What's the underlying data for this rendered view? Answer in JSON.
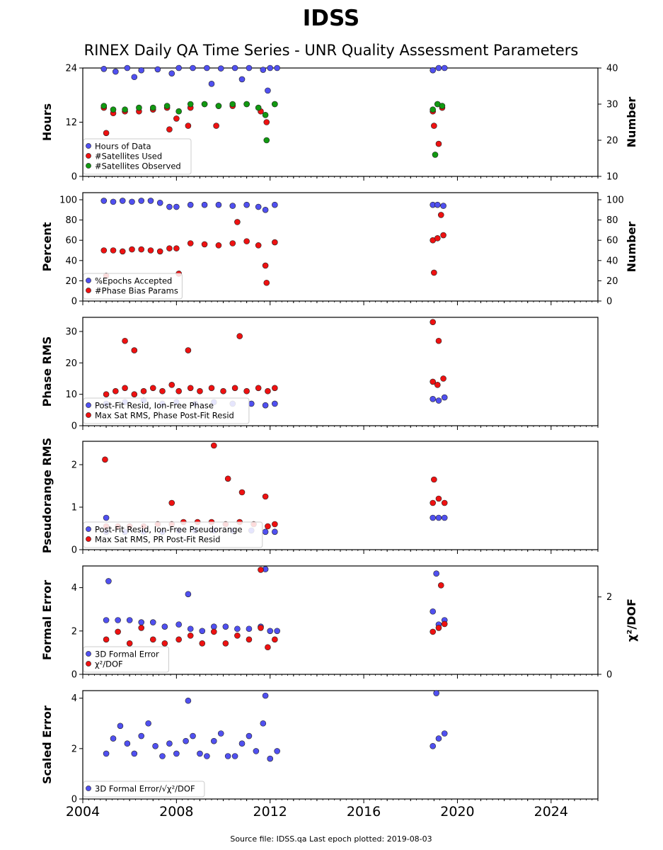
{
  "title": "IDSS",
  "subtitle": "RINEX Daily QA Time Series - UNR Quality Assessment Parameters",
  "footer": "Source file: IDSS.qa Last epoch plotted: 2019-08-03",
  "colors": {
    "blue": "#5050f0",
    "red": "#ee1111",
    "green": "#119911",
    "edge": "#222222"
  },
  "x_axis": {
    "ticks": [
      "2004",
      "2008",
      "2012",
      "2016",
      "2020",
      "2024"
    ]
  },
  "chart_data": [
    {
      "type": "scatter",
      "ylabel": "Hours",
      "y2label": "Number",
      "ylim": [
        0,
        24
      ],
      "yticks": [
        "0",
        "12",
        "24"
      ],
      "y2lim": [
        10,
        40
      ],
      "y2ticks": [
        "10",
        "20",
        "30",
        "40"
      ],
      "legend": "bottom-left",
      "series": [
        {
          "name": "Hours of Data",
          "color": "blue",
          "axis": "left",
          "x": [
            2004.9,
            2005.4,
            2005.9,
            2006.5,
            2007.2,
            2007.8,
            2008.1,
            2008.7,
            2009.3,
            2009.9,
            2010.5,
            2011.1,
            2011.7,
            2012.0,
            2012.3,
            2018.95,
            2019.2,
            2019.45,
            2009.5,
            2010.8,
            2006.2,
            2011.9
          ],
          "y": [
            23.8,
            23.2,
            24,
            23.5,
            23.7,
            22.8,
            24,
            24,
            24,
            23.9,
            24,
            24,
            23.6,
            24,
            24,
            23.5,
            24,
            24,
            20.5,
            21.5,
            22,
            19
          ]
        },
        {
          "name": "#Satellites Used",
          "color": "red",
          "axis": "right",
          "x": [
            2004.9,
            2005.3,
            2005.8,
            2006.4,
            2007.0,
            2007.6,
            2008.0,
            2008.6,
            2009.2,
            2009.8,
            2010.4,
            2011.0,
            2011.6,
            2011.85,
            2012.2,
            2018.95,
            2019.15,
            2019.35,
            2005.0,
            2007.7,
            2008.5,
            2009.7,
            2019.0,
            2019.2
          ],
          "y": [
            29,
            27.5,
            28,
            28,
            28.5,
            29,
            26,
            29,
            30,
            29.5,
            29.5,
            30,
            28,
            25,
            30,
            28,
            30,
            29,
            22,
            23,
            24,
            24,
            24,
            19
          ]
        },
        {
          "name": "#Satellites Observed",
          "color": "green",
          "axis": "right",
          "x": [
            2004.9,
            2005.3,
            2005.8,
            2006.4,
            2007.0,
            2007.6,
            2008.1,
            2008.6,
            2009.2,
            2009.8,
            2010.4,
            2011.0,
            2011.5,
            2011.8,
            2012.2,
            2018.95,
            2019.15,
            2019.35,
            2011.85,
            2019.05
          ],
          "y": [
            29.5,
            28.5,
            28.5,
            29,
            29,
            29.5,
            28,
            30,
            30,
            29.5,
            30,
            30,
            29,
            27,
            30,
            28.5,
            30,
            29.5,
            20,
            16
          ]
        }
      ]
    },
    {
      "type": "scatter",
      "ylabel": "Percent",
      "y2label": "Number",
      "ylim": [
        0,
        107
      ],
      "yticks": [
        "0",
        "20",
        "40",
        "60",
        "80",
        "100"
      ],
      "y2lim": [
        0,
        107
      ],
      "y2ticks": [
        "0",
        "20",
        "40",
        "60",
        "80",
        "100"
      ],
      "legend": "bottom-left",
      "series": [
        {
          "name": "%Epochs Accepted",
          "color": "blue",
          "axis": "left",
          "x": [
            2004.9,
            2005.3,
            2005.7,
            2006.1,
            2006.5,
            2006.9,
            2007.3,
            2007.7,
            2008.0,
            2008.6,
            2009.2,
            2009.8,
            2010.4,
            2011.0,
            2011.5,
            2011.8,
            2012.2,
            2018.95,
            2019.15,
            2019.4
          ],
          "y": [
            99,
            98,
            99,
            98,
            99,
            99,
            97,
            93,
            93,
            95,
            95,
            95,
            94,
            95,
            93,
            90,
            95,
            95,
            95,
            94
          ]
        },
        {
          "name": "#Phase Bias Params",
          "color": "red",
          "axis": "left",
          "x": [
            2004.9,
            2005.3,
            2005.7,
            2006.1,
            2006.5,
            2006.9,
            2007.3,
            2007.7,
            2008.0,
            2008.6,
            2009.2,
            2009.8,
            2010.4,
            2011.0,
            2011.5,
            2011.8,
            2012.2,
            2018.95,
            2019.15,
            2019.4,
            2005.0,
            2008.1,
            2010.6,
            2011.85,
            2019.0,
            2019.3
          ],
          "y": [
            50,
            50,
            49,
            51,
            51,
            50,
            49,
            52,
            52,
            57,
            56,
            55,
            57,
            59,
            55,
            35,
            58,
            60,
            62,
            65,
            25,
            27,
            78,
            18,
            28,
            85
          ]
        }
      ]
    },
    {
      "type": "scatter",
      "ylabel": "Phase RMS",
      "ylim": [
        0,
        34.5
      ],
      "yticks": [
        "0",
        "10",
        "20",
        "30"
      ],
      "legend": "bottom-left",
      "series": [
        {
          "name": "Post-Fit Resid, Ion-Free Phase",
          "color": "blue",
          "axis": "left",
          "x": [
            2005.0,
            2005.8,
            2006.6,
            2007.4,
            2008.0,
            2008.8,
            2009.6,
            2010.4,
            2011.2,
            2011.8,
            2012.2,
            2018.95,
            2019.2,
            2019.45
          ],
          "y": [
            7,
            7.5,
            8,
            7,
            7.5,
            7,
            7.5,
            7,
            7,
            6.5,
            7,
            8.5,
            8,
            9
          ]
        },
        {
          "name": "Max Sat RMS, Phase Post-Fit Resid",
          "color": "red",
          "axis": "left",
          "x": [
            2005.0,
            2005.4,
            2005.8,
            2006.2,
            2006.6,
            2007.0,
            2007.4,
            2007.8,
            2008.1,
            2008.6,
            2009.0,
            2009.5,
            2010.0,
            2010.5,
            2011.0,
            2011.5,
            2011.9,
            2012.2,
            2018.95,
            2019.15,
            2019.4,
            2005.8,
            2006.2,
            2008.5,
            2010.7,
            2018.95,
            2019.2
          ],
          "y": [
            10,
            11,
            12,
            10,
            11,
            12,
            11,
            13,
            11,
            12,
            11,
            12,
            11,
            12,
            11,
            12,
            11,
            12,
            14,
            13,
            15,
            27,
            24,
            24,
            28.5,
            33,
            27
          ]
        }
      ]
    },
    {
      "type": "scatter",
      "ylabel": "Pseudorange RMS",
      "ylim": [
        0,
        2.55
      ],
      "yticks": [
        "0",
        "1",
        "2"
      ],
      "legend": "bottom-left",
      "series": [
        {
          "name": "Post-Fit Resid, Ion-Free Pseudorange",
          "color": "blue",
          "axis": "left",
          "x": [
            2005.0,
            2005.8,
            2006.6,
            2007.4,
            2008.1,
            2008.8,
            2009.6,
            2010.4,
            2011.2,
            2011.8,
            2012.2,
            2018.95,
            2019.2,
            2019.45,
            2005.0
          ],
          "y": [
            0.42,
            0.42,
            0.42,
            0.42,
            0.45,
            0.45,
            0.45,
            0.45,
            0.45,
            0.42,
            0.42,
            0.75,
            0.75,
            0.75,
            0.75
          ]
        },
        {
          "name": "Max Sat RMS, PR Post-Fit Resid",
          "color": "red",
          "axis": "left",
          "x": [
            2005.0,
            2005.5,
            2006.0,
            2006.6,
            2007.2,
            2007.8,
            2008.3,
            2008.9,
            2009.5,
            2010.1,
            2010.7,
            2011.3,
            2011.9,
            2012.2,
            2018.95,
            2019.2,
            2019.45,
            2004.95,
            2009.6,
            2010.2,
            2010.8,
            2011.8,
            2007.8,
            2019.0
          ],
          "y": [
            0.55,
            0.55,
            0.55,
            0.55,
            0.6,
            0.6,
            0.65,
            0.65,
            0.65,
            0.6,
            0.65,
            0.6,
            0.55,
            0.6,
            1.1,
            1.2,
            1.1,
            2.12,
            2.45,
            1.67,
            1.35,
            1.25,
            1.1,
            1.65
          ]
        }
      ]
    },
    {
      "type": "scatter",
      "ylabel": "Formal Error",
      "y2label": "χ²/DOF",
      "ylim": [
        0,
        5
      ],
      "yticks": [
        "0",
        "2",
        "4"
      ],
      "y2lim": [
        0,
        2.8
      ],
      "y2ticks": [
        "0",
        "2"
      ],
      "legend": "bottom-left",
      "series": [
        {
          "name": "3D Formal Error",
          "color": "blue",
          "axis": "left",
          "x": [
            2005.0,
            2005.5,
            2006.0,
            2006.5,
            2007.0,
            2007.5,
            2008.1,
            2008.6,
            2009.1,
            2009.6,
            2010.1,
            2010.6,
            2011.1,
            2011.6,
            2012.0,
            2012.3,
            2018.95,
            2019.2,
            2019.45,
            2005.1,
            2008.5,
            2011.8,
            2019.1
          ],
          "y": [
            2.5,
            2.5,
            2.5,
            2.4,
            2.4,
            2.2,
            2.3,
            2.1,
            2.0,
            2.2,
            2.2,
            2.1,
            2.1,
            2.2,
            2.0,
            2.0,
            2.9,
            2.3,
            2.5,
            4.3,
            3.7,
            4.85,
            4.65
          ]
        },
        {
          "name": "χ²/DOF",
          "color": "red",
          "axis": "right",
          "x": [
            2005.0,
            2005.5,
            2006.0,
            2006.5,
            2007.0,
            2007.5,
            2008.1,
            2008.6,
            2009.1,
            2009.6,
            2010.1,
            2010.6,
            2011.1,
            2011.6,
            2011.9,
            2012.2,
            2018.95,
            2019.2,
            2019.45,
            2011.6,
            2019.3
          ],
          "y": [
            0.9,
            1.1,
            0.8,
            1.2,
            0.9,
            0.8,
            0.9,
            1.0,
            0.8,
            1.1,
            0.8,
            1.0,
            0.9,
            1.2,
            0.7,
            0.9,
            1.1,
            1.2,
            1.3,
            2.7,
            2.3
          ]
        }
      ]
    },
    {
      "type": "scatter",
      "ylabel": "Scaled Error",
      "ylim": [
        0,
        4.3
      ],
      "yticks": [
        "0",
        "2",
        "4"
      ],
      "legend": "bottom-left",
      "series": [
        {
          "name": "3D Formal Error/√χ²/DOF",
          "color": "blue",
          "axis": "left",
          "x": [
            2005.0,
            2005.3,
            2005.6,
            2005.9,
            2006.2,
            2006.5,
            2006.8,
            2007.1,
            2007.4,
            2007.7,
            2008.0,
            2008.4,
            2008.7,
            2009.0,
            2009.3,
            2009.6,
            2009.9,
            2010.2,
            2010.5,
            2010.8,
            2011.1,
            2011.4,
            2011.7,
            2012.0,
            2012.3,
            2018.95,
            2019.2,
            2019.45,
            2008.5,
            2011.8,
            2019.1
          ],
          "y": [
            1.8,
            2.4,
            2.9,
            2.2,
            1.8,
            2.5,
            3.0,
            2.1,
            1.7,
            2.2,
            1.8,
            2.3,
            2.5,
            1.8,
            1.7,
            2.3,
            2.6,
            1.7,
            1.7,
            2.2,
            2.5,
            1.9,
            3.0,
            1.6,
            1.9,
            2.1,
            2.4,
            2.6,
            3.9,
            4.1,
            4.2
          ]
        }
      ]
    }
  ]
}
